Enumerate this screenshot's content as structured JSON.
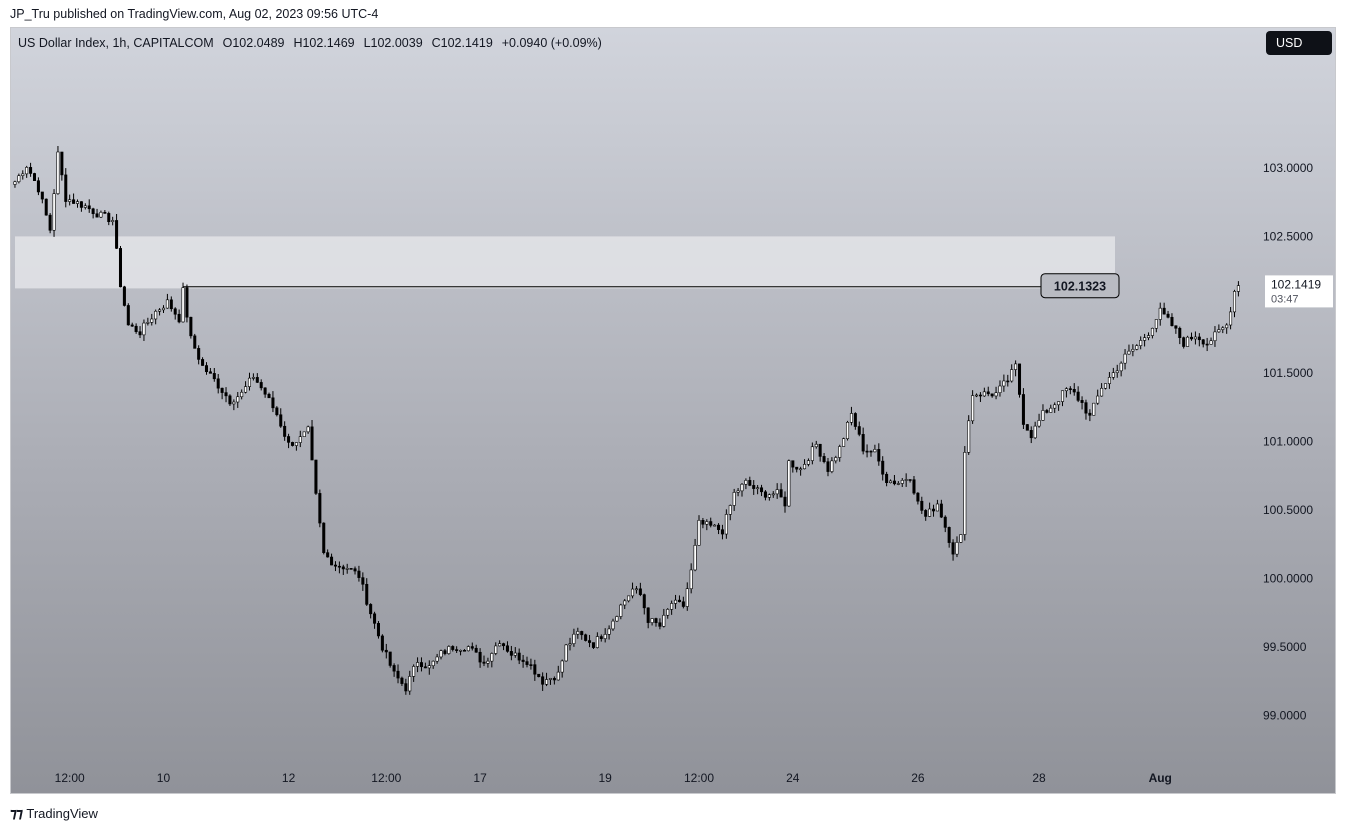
{
  "header": {
    "published_line": "JP_Tru published on TradingView.com, Aug 02, 2023 09:56 UTC-4"
  },
  "legend": {
    "symbol": "US Dollar Index, 1h, CAPITALCOM",
    "open": "O102.0489",
    "high": "H102.1469",
    "low": "L102.0039",
    "close": "C102.1419",
    "change": "+0.0940 (+0.09%)"
  },
  "currency_button": "USD",
  "footer": {
    "brand": "TradingView",
    "logo_icon": "tradingview-logo-icon"
  },
  "colors": {
    "candle_up_fill": "#ffffff",
    "candle_down_fill": "#000000",
    "candle_outline": "#000000",
    "zone_fill": "#e3e4e8",
    "level_line": "#000000",
    "price_badge_bg": "#ffffff"
  },
  "chart_data": {
    "type": "candlestick",
    "title": "",
    "timeframe": "1h",
    "y_range": [
      98.6,
      103.95
    ],
    "y_ticks": [
      "99.0000",
      "99.5000",
      "100.0000",
      "100.5000",
      "101.0000",
      "101.5000",
      "102.5000",
      "103.0000"
    ],
    "x_ticks": [
      {
        "label": "12:00",
        "bar": 14
      },
      {
        "label": "10",
        "bar": 38
      },
      {
        "label": "12",
        "bar": 70
      },
      {
        "label": "12:00",
        "bar": 95
      },
      {
        "label": "17",
        "bar": 119
      },
      {
        "label": "19",
        "bar": 151
      },
      {
        "label": "12:00",
        "bar": 175
      },
      {
        "label": "24",
        "bar": 199
      },
      {
        "label": "26",
        "bar": 231
      },
      {
        "label": "28",
        "bar": 262
      },
      {
        "label": "Aug",
        "bar": 293
      }
    ],
    "bar_count": 318,
    "zone": {
      "low": 102.12,
      "high": 102.5
    },
    "horizontal_level": {
      "value": 102.1323,
      "label": "102.1323",
      "start_bar": 43
    },
    "last_price": {
      "value": 102.1419,
      "label": "102.1419",
      "countdown": "03:47"
    },
    "anchors": [
      [
        0,
        102.9
      ],
      [
        3,
        103.02
      ],
      [
        6,
        102.85
      ],
      [
        9,
        102.55
      ],
      [
        11,
        103.1
      ],
      [
        13,
        102.78
      ],
      [
        18,
        102.72
      ],
      [
        22,
        102.65
      ],
      [
        25,
        102.62
      ],
      [
        27,
        102.15
      ],
      [
        29,
        101.85
      ],
      [
        32,
        101.8
      ],
      [
        36,
        101.95
      ],
      [
        39,
        102.02
      ],
      [
        42,
        101.9
      ],
      [
        43,
        102.1
      ],
      [
        45,
        101.75
      ],
      [
        48,
        101.55
      ],
      [
        51,
        101.45
      ],
      [
        55,
        101.3
      ],
      [
        58,
        101.35
      ],
      [
        61,
        101.48
      ],
      [
        64,
        101.35
      ],
      [
        67,
        101.2
      ],
      [
        70,
        100.98
      ],
      [
        73,
        101.02
      ],
      [
        75,
        101.08
      ],
      [
        77,
        100.6
      ],
      [
        79,
        100.18
      ],
      [
        82,
        100.1
      ],
      [
        85,
        100.08
      ],
      [
        88,
        100.02
      ],
      [
        91,
        99.75
      ],
      [
        94,
        99.5
      ],
      [
        97,
        99.3
      ],
      [
        100,
        99.2
      ],
      [
        103,
        99.4
      ],
      [
        106,
        99.35
      ],
      [
        109,
        99.45
      ],
      [
        112,
        99.5
      ],
      [
        116,
        99.5
      ],
      [
        120,
        99.38
      ],
      [
        124,
        99.55
      ],
      [
        127,
        99.45
      ],
      [
        131,
        99.4
      ],
      [
        135,
        99.25
      ],
      [
        139,
        99.3
      ],
      [
        141,
        99.5
      ],
      [
        144,
        99.6
      ],
      [
        148,
        99.52
      ],
      [
        152,
        99.65
      ],
      [
        155,
        99.8
      ],
      [
        158,
        99.92
      ],
      [
        160,
        99.88
      ],
      [
        162,
        99.7
      ],
      [
        165,
        99.65
      ],
      [
        168,
        99.82
      ],
      [
        171,
        99.8
      ],
      [
        173,
        100.05
      ],
      [
        175,
        100.4
      ],
      [
        178,
        100.38
      ],
      [
        181,
        100.35
      ],
      [
        184,
        100.62
      ],
      [
        187,
        100.7
      ],
      [
        191,
        100.62
      ],
      [
        195,
        100.62
      ],
      [
        197,
        100.55
      ],
      [
        198,
        100.85
      ],
      [
        201,
        100.8
      ],
      [
        205,
        100.98
      ],
      [
        208,
        100.8
      ],
      [
        211,
        100.95
      ],
      [
        214,
        101.2
      ],
      [
        217,
        100.95
      ],
      [
        220,
        100.92
      ],
      [
        223,
        100.72
      ],
      [
        226,
        100.7
      ],
      [
        229,
        100.75
      ],
      [
        231,
        100.55
      ],
      [
        233,
        100.45
      ],
      [
        236,
        100.55
      ],
      [
        238,
        100.38
      ],
      [
        240,
        100.2
      ],
      [
        242,
        100.3
      ],
      [
        243,
        100.95
      ],
      [
        245,
        101.35
      ],
      [
        248,
        101.35
      ],
      [
        251,
        101.35
      ],
      [
        254,
        101.45
      ],
      [
        256,
        101.55
      ],
      [
        258,
        101.15
      ],
      [
        260,
        101.05
      ],
      [
        263,
        101.2
      ],
      [
        266,
        101.28
      ],
      [
        269,
        101.38
      ],
      [
        271,
        101.35
      ],
      [
        273,
        101.28
      ],
      [
        275,
        101.18
      ],
      [
        278,
        101.4
      ],
      [
        281,
        101.5
      ],
      [
        284,
        101.62
      ],
      [
        287,
        101.7
      ],
      [
        290,
        101.8
      ],
      [
        293,
        101.95
      ],
      [
        296,
        101.85
      ],
      [
        299,
        101.72
      ],
      [
        302,
        101.78
      ],
      [
        305,
        101.72
      ],
      [
        308,
        101.8
      ],
      [
        310,
        101.85
      ],
      [
        312,
        102.1
      ],
      [
        313,
        102.14
      ]
    ]
  }
}
